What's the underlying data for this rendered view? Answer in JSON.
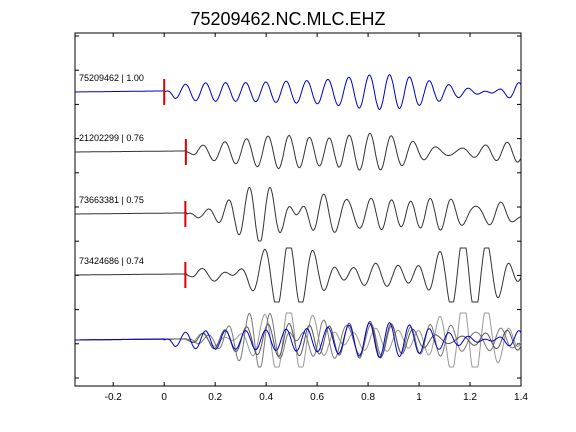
{
  "chart_data": {
    "type": "line",
    "title": "75209462.NC.MLC.EHZ",
    "xlabel": "",
    "ylabel": "",
    "xlim": [
      -0.35,
      1.4
    ],
    "xticks": [
      -0.2,
      0,
      0.2,
      0.4,
      0.6,
      0.8,
      1,
      1.2,
      1.4
    ],
    "xtick_labels": [
      "-0.2",
      "0",
      "0.2",
      "0.4",
      "0.6",
      "0.8",
      "1",
      "1.2",
      "1.4"
    ],
    "grid": false,
    "traces": [
      {
        "label": "75209462 | 1.00",
        "color": "#0000cc",
        "pick_time": 0.0,
        "onset": 0.0,
        "period": 0.083,
        "seed": 1
      },
      {
        "label": "21202299 | 0.76",
        "color": "#333333",
        "pick_time": 0.085,
        "onset": 0.09,
        "period": 0.087,
        "seed": 2
      },
      {
        "label": "73663381 | 0.75",
        "color": "#333333",
        "pick_time": 0.083,
        "onset": 0.09,
        "period": 0.086,
        "seed": 3
      },
      {
        "label": "73424686 | 0.74",
        "color": "#333333",
        "pick_time": 0.083,
        "onset": 0.09,
        "period": 0.088,
        "seed": 4
      }
    ],
    "pick_color": "#dd0000",
    "stack_trace": true
  }
}
